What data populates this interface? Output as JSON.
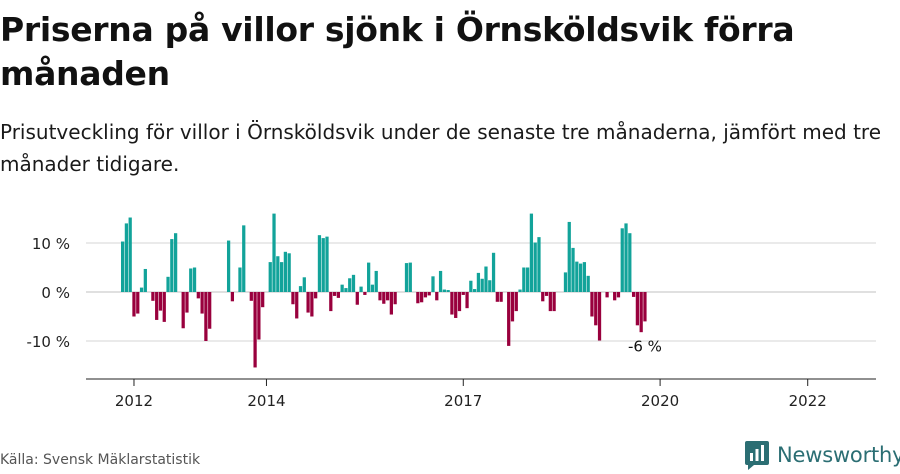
{
  "title": "Priserna på villor sjönk i Örnsköldsvik förra månaden",
  "subtitle": "Prisutveckling för villor i Örnsköldsvik under de senaste tre månaderna, jämfört med tre månader tidigare.",
  "source": "Källa: Svensk Mäklarstatistik",
  "brand": {
    "name": "Newsworthy"
  },
  "colors": {
    "positive": "#12a39a",
    "negative": "#99003d",
    "brand": "#2b6e73"
  },
  "chart_data": {
    "type": "bar",
    "title": "",
    "xlabel": "",
    "ylabel": "",
    "ylim": [
      -17,
      17
    ],
    "y_ticks": [
      {
        "value": 10,
        "label": "10 %"
      },
      {
        "value": 0,
        "label": "0 %"
      },
      {
        "value": -10,
        "label": "-10 %"
      }
    ],
    "x_ticks": [
      {
        "index": 3,
        "label": "2012"
      },
      {
        "index": 38,
        "label": "2014"
      },
      {
        "index": 90,
        "label": "2017"
      },
      {
        "index": 142,
        "label": "2020"
      },
      {
        "index": 181,
        "label": "2022"
      }
    ],
    "last_label": "-6 %",
    "start_month": "2011-10",
    "values": [
      10.3,
      14,
      15.2,
      -5,
      -4.4,
      0.9,
      4.7,
      0,
      -1.8,
      -5.7,
      -3.8,
      -6.1,
      3.1,
      10.8,
      12,
      0,
      -7.4,
      -4.2,
      4.8,
      5,
      -1.3,
      -4.4,
      -10,
      -7.5,
      0,
      0,
      0,
      0,
      10.5,
      -1.9,
      0,
      5,
      13.6,
      0,
      -1.8,
      -15.4,
      -9.7,
      -3.1,
      0,
      6.1,
      16,
      7.3,
      6.1,
      8.2,
      7.9,
      -2.5,
      -5.4,
      1.2,
      3,
      -4.2,
      -5,
      -1.3,
      11.6,
      11,
      11.3,
      -3.9,
      -0.8,
      -1.2,
      1.5,
      0.8,
      2.8,
      3.5,
      -2.6,
      1.1,
      -0.6,
      6,
      1.5,
      4.3,
      -1.7,
      -2.4,
      -1.7,
      -4.6,
      -2.5,
      0,
      0,
      5.9,
      6,
      0,
      -2.3,
      -2.1,
      -1.1,
      -0.7,
      3.2,
      -1.7,
      4.3,
      0.5,
      0.4,
      -4.6,
      -5.3,
      -3.9,
      -0.6,
      -3.3,
      2.3,
      0.6,
      3.9,
      2.7,
      5.2,
      2.4,
      8,
      -2,
      -2,
      0,
      -11,
      -6,
      -3.9,
      0.5,
      5,
      5,
      16,
      10.1,
      11.2,
      -1.9,
      -0.8,
      -3.9,
      -3.9,
      0,
      0,
      4,
      14.3,
      9,
      6.2,
      5.8,
      6.1,
      3.3,
      -5,
      -6.8,
      -9.9,
      0,
      -1.1,
      0,
      -1.7,
      -1.1,
      13,
      14,
      12,
      -1,
      -6.8,
      -8.2,
      -6
    ]
  }
}
